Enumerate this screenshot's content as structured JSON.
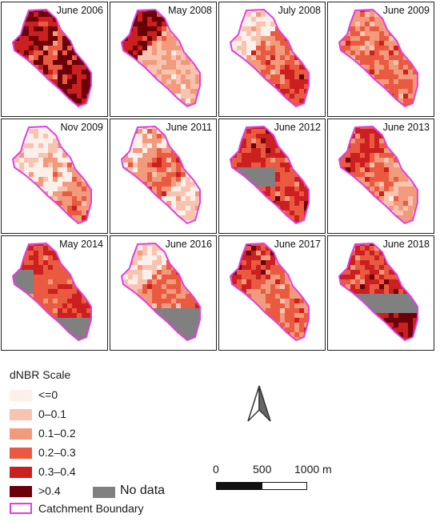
{
  "panels": [
    {
      "label": "June 2006"
    },
    {
      "label": "May 2008"
    },
    {
      "label": "July 2008"
    },
    {
      "label": "June 2009"
    },
    {
      "label": "Nov 2009"
    },
    {
      "label": "June 2011"
    },
    {
      "label": "June 2012"
    },
    {
      "label": "June 2013"
    },
    {
      "label": "May 2014"
    },
    {
      "label": "June 2016"
    },
    {
      "label": "June 2017"
    },
    {
      "label": "June 2018"
    }
  ],
  "legend": {
    "title": "dNBR Scale",
    "classes": [
      {
        "label": "<=0",
        "color": "#fdf0eb"
      },
      {
        "label": "0–0.1",
        "color": "#f8c4b0"
      },
      {
        "label": "0.1–0.2",
        "color": "#f29a7c"
      },
      {
        "label": "0.2–0.3",
        "color": "#ea5a40"
      },
      {
        "label": "0.3–0.4",
        "color": "#cc1f1f"
      },
      {
        "label": ">0.4",
        "color": "#6a0008"
      }
    ],
    "nodata_label": "No data",
    "nodata_color": "#808080",
    "boundary_label": "Catchment Boundary",
    "boundary_color": "#e040e0"
  },
  "scalebar": {
    "ticks": [
      "0",
      "500",
      "1000 m"
    ]
  }
}
